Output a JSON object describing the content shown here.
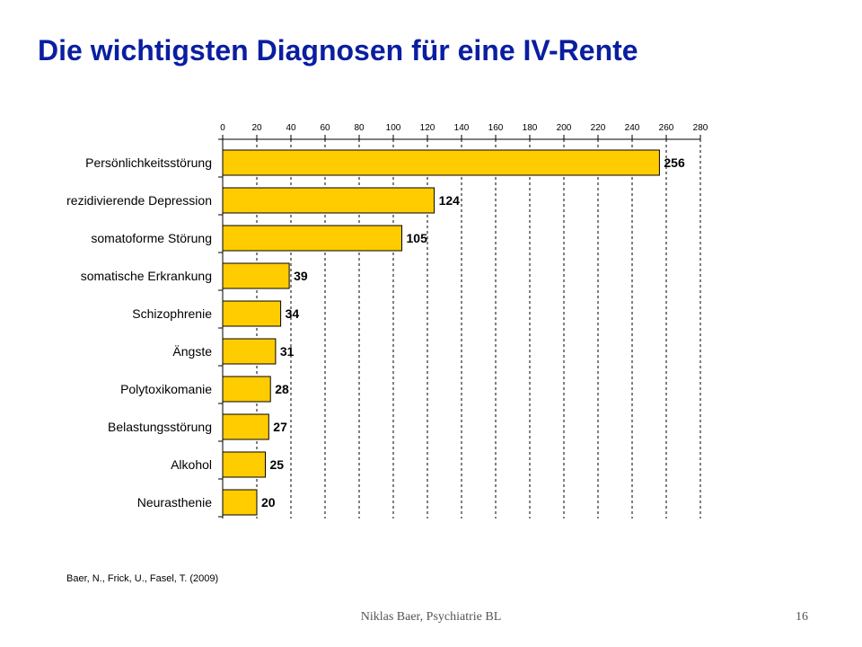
{
  "slide": {
    "title": "Die wichtigsten Diagnosen für eine IV-Rente",
    "citation": "Baer, N., Frick, U., Fasel, T. (2009)",
    "footer": "Niklas Baer, Psychiatrie BL",
    "page_number": "16"
  },
  "colors": {
    "title": "#0a1ea0",
    "bar_fill": "#ffcc00",
    "bar_stroke": "#000000",
    "gridline": "#000000"
  },
  "chart_data": {
    "type": "bar",
    "orientation": "horizontal",
    "title": "",
    "xlabel": "",
    "ylabel": "",
    "xlim": [
      0,
      280
    ],
    "ticks": [
      0,
      20,
      40,
      60,
      80,
      100,
      120,
      140,
      160,
      180,
      200,
      220,
      240,
      260,
      280
    ],
    "tick_position": "top",
    "grid": "vertical dashed",
    "categories": [
      "Persönlichkeitsstörung",
      "rezidivierende Depression",
      "somatoforme Störung",
      "somatische Erkrankung",
      "Schizophrenie",
      "Ängste",
      "Polytoxikomanie",
      "Belastungsstörung",
      "Alkohol",
      "Neurasthenie"
    ],
    "values": [
      256,
      124,
      105,
      39,
      34,
      31,
      28,
      27,
      25,
      20
    ]
  }
}
